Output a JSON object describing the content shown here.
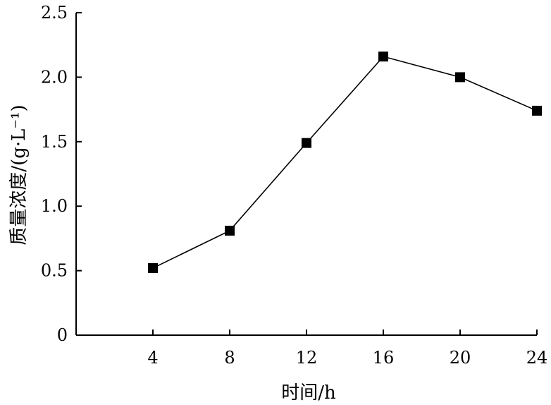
{
  "chart_data": {
    "type": "line",
    "title": "",
    "xlabel": "时间/h",
    "ylabel": "质量浓度/(g·L⁻¹)",
    "x": [
      4,
      8,
      12,
      16,
      20,
      24
    ],
    "series": [
      {
        "values": [
          0.52,
          0.81,
          1.49,
          2.16,
          2.0,
          1.74
        ],
        "marker": "square",
        "color": "#000000"
      }
    ],
    "xlim": [
      0,
      24
    ],
    "ylim": [
      0,
      2.5
    ],
    "xticks": [
      "4",
      "8",
      "12",
      "16",
      "20",
      "24"
    ],
    "yticks": [
      "0",
      "0.5",
      "1.0",
      "1.5",
      "2.0",
      "2.5"
    ],
    "grid": false,
    "legend": "none"
  }
}
